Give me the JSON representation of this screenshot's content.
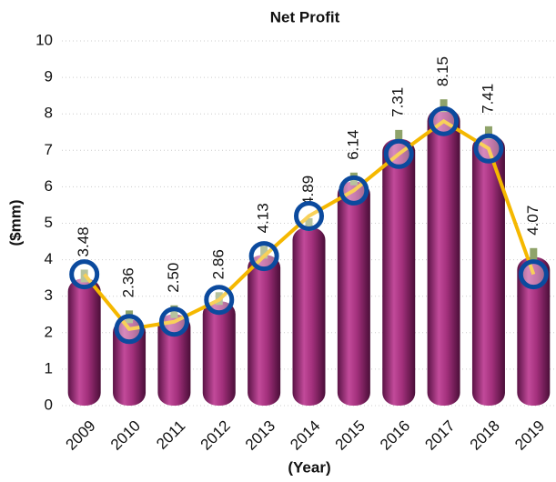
{
  "chart_data": {
    "type": "bar",
    "title": "Net Profit",
    "x_label": "(Year)",
    "y_label": "($mm)",
    "categories": [
      "2009",
      "2010",
      "2011",
      "2012",
      "2013",
      "2014",
      "2015",
      "2016",
      "2017",
      "2018",
      "2019"
    ],
    "series": [
      {
        "type": "bar",
        "color": "#a3307c",
        "values": [
          3.48,
          2.36,
          2.5,
          2.86,
          4.13,
          4.89,
          6.14,
          7.31,
          8.15,
          7.41,
          4.07
        ],
        "value_labels": [
          "3.48",
          "2.36",
          "2.50",
          "2.86",
          "4.13",
          "4.89",
          "6.14",
          "7.31",
          "8.15",
          "7.41",
          "4.07"
        ]
      },
      {
        "type": "line",
        "color": "#f5b800",
        "marker_color": "#0b4a9e",
        "values": [
          3.6,
          2.1,
          2.3,
          2.9,
          4.1,
          5.2,
          5.9,
          6.9,
          7.8,
          7.05,
          3.6
        ]
      }
    ],
    "ylim": [
      0,
      10
    ],
    "yticks": [
      0,
      1,
      2,
      3,
      4,
      5,
      6,
      7,
      8,
      9,
      10
    ],
    "grid": true
  }
}
